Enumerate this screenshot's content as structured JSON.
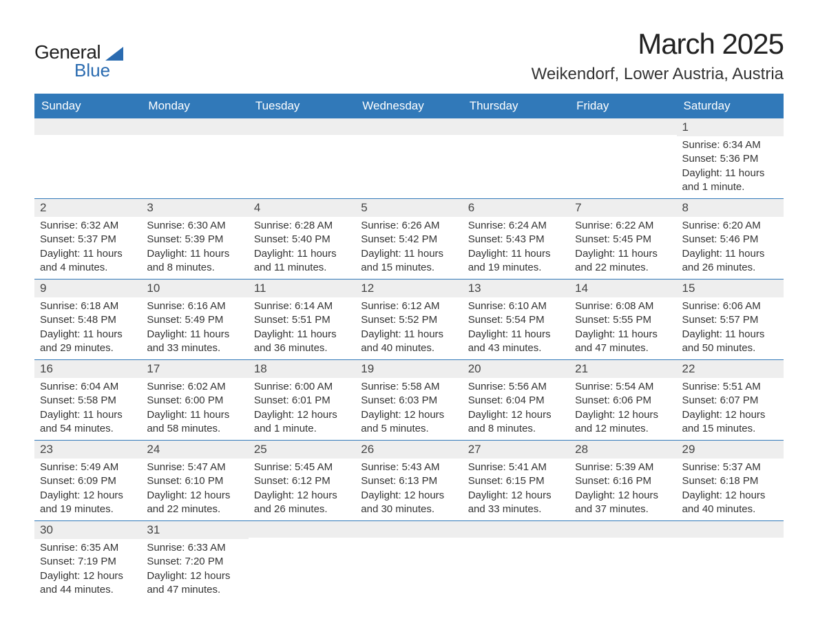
{
  "logo": {
    "line1": "General",
    "line2": "Blue"
  },
  "title": "March 2025",
  "location": "Weikendorf, Lower Austria, Austria",
  "colors": {
    "header_bg": "#3179b9",
    "row_border": "#3179b9",
    "daynum_bg": "#eeeeee",
    "text": "#333333",
    "logo_blue": "#2a6bb0"
  },
  "day_names": [
    "Sunday",
    "Monday",
    "Tuesday",
    "Wednesday",
    "Thursday",
    "Friday",
    "Saturday"
  ],
  "weeks": [
    [
      {
        "n": "",
        "sr": "",
        "ss": "",
        "dl": ""
      },
      {
        "n": "",
        "sr": "",
        "ss": "",
        "dl": ""
      },
      {
        "n": "",
        "sr": "",
        "ss": "",
        "dl": ""
      },
      {
        "n": "",
        "sr": "",
        "ss": "",
        "dl": ""
      },
      {
        "n": "",
        "sr": "",
        "ss": "",
        "dl": ""
      },
      {
        "n": "",
        "sr": "",
        "ss": "",
        "dl": ""
      },
      {
        "n": "1",
        "sr": "Sunrise: 6:34 AM",
        "ss": "Sunset: 5:36 PM",
        "dl": "Daylight: 11 hours and 1 minute."
      }
    ],
    [
      {
        "n": "2",
        "sr": "Sunrise: 6:32 AM",
        "ss": "Sunset: 5:37 PM",
        "dl": "Daylight: 11 hours and 4 minutes."
      },
      {
        "n": "3",
        "sr": "Sunrise: 6:30 AM",
        "ss": "Sunset: 5:39 PM",
        "dl": "Daylight: 11 hours and 8 minutes."
      },
      {
        "n": "4",
        "sr": "Sunrise: 6:28 AM",
        "ss": "Sunset: 5:40 PM",
        "dl": "Daylight: 11 hours and 11 minutes."
      },
      {
        "n": "5",
        "sr": "Sunrise: 6:26 AM",
        "ss": "Sunset: 5:42 PM",
        "dl": "Daylight: 11 hours and 15 minutes."
      },
      {
        "n": "6",
        "sr": "Sunrise: 6:24 AM",
        "ss": "Sunset: 5:43 PM",
        "dl": "Daylight: 11 hours and 19 minutes."
      },
      {
        "n": "7",
        "sr": "Sunrise: 6:22 AM",
        "ss": "Sunset: 5:45 PM",
        "dl": "Daylight: 11 hours and 22 minutes."
      },
      {
        "n": "8",
        "sr": "Sunrise: 6:20 AM",
        "ss": "Sunset: 5:46 PM",
        "dl": "Daylight: 11 hours and 26 minutes."
      }
    ],
    [
      {
        "n": "9",
        "sr": "Sunrise: 6:18 AM",
        "ss": "Sunset: 5:48 PM",
        "dl": "Daylight: 11 hours and 29 minutes."
      },
      {
        "n": "10",
        "sr": "Sunrise: 6:16 AM",
        "ss": "Sunset: 5:49 PM",
        "dl": "Daylight: 11 hours and 33 minutes."
      },
      {
        "n": "11",
        "sr": "Sunrise: 6:14 AM",
        "ss": "Sunset: 5:51 PM",
        "dl": "Daylight: 11 hours and 36 minutes."
      },
      {
        "n": "12",
        "sr": "Sunrise: 6:12 AM",
        "ss": "Sunset: 5:52 PM",
        "dl": "Daylight: 11 hours and 40 minutes."
      },
      {
        "n": "13",
        "sr": "Sunrise: 6:10 AM",
        "ss": "Sunset: 5:54 PM",
        "dl": "Daylight: 11 hours and 43 minutes."
      },
      {
        "n": "14",
        "sr": "Sunrise: 6:08 AM",
        "ss": "Sunset: 5:55 PM",
        "dl": "Daylight: 11 hours and 47 minutes."
      },
      {
        "n": "15",
        "sr": "Sunrise: 6:06 AM",
        "ss": "Sunset: 5:57 PM",
        "dl": "Daylight: 11 hours and 50 minutes."
      }
    ],
    [
      {
        "n": "16",
        "sr": "Sunrise: 6:04 AM",
        "ss": "Sunset: 5:58 PM",
        "dl": "Daylight: 11 hours and 54 minutes."
      },
      {
        "n": "17",
        "sr": "Sunrise: 6:02 AM",
        "ss": "Sunset: 6:00 PM",
        "dl": "Daylight: 11 hours and 58 minutes."
      },
      {
        "n": "18",
        "sr": "Sunrise: 6:00 AM",
        "ss": "Sunset: 6:01 PM",
        "dl": "Daylight: 12 hours and 1 minute."
      },
      {
        "n": "19",
        "sr": "Sunrise: 5:58 AM",
        "ss": "Sunset: 6:03 PM",
        "dl": "Daylight: 12 hours and 5 minutes."
      },
      {
        "n": "20",
        "sr": "Sunrise: 5:56 AM",
        "ss": "Sunset: 6:04 PM",
        "dl": "Daylight: 12 hours and 8 minutes."
      },
      {
        "n": "21",
        "sr": "Sunrise: 5:54 AM",
        "ss": "Sunset: 6:06 PM",
        "dl": "Daylight: 12 hours and 12 minutes."
      },
      {
        "n": "22",
        "sr": "Sunrise: 5:51 AM",
        "ss": "Sunset: 6:07 PM",
        "dl": "Daylight: 12 hours and 15 minutes."
      }
    ],
    [
      {
        "n": "23",
        "sr": "Sunrise: 5:49 AM",
        "ss": "Sunset: 6:09 PM",
        "dl": "Daylight: 12 hours and 19 minutes."
      },
      {
        "n": "24",
        "sr": "Sunrise: 5:47 AM",
        "ss": "Sunset: 6:10 PM",
        "dl": "Daylight: 12 hours and 22 minutes."
      },
      {
        "n": "25",
        "sr": "Sunrise: 5:45 AM",
        "ss": "Sunset: 6:12 PM",
        "dl": "Daylight: 12 hours and 26 minutes."
      },
      {
        "n": "26",
        "sr": "Sunrise: 5:43 AM",
        "ss": "Sunset: 6:13 PM",
        "dl": "Daylight: 12 hours and 30 minutes."
      },
      {
        "n": "27",
        "sr": "Sunrise: 5:41 AM",
        "ss": "Sunset: 6:15 PM",
        "dl": "Daylight: 12 hours and 33 minutes."
      },
      {
        "n": "28",
        "sr": "Sunrise: 5:39 AM",
        "ss": "Sunset: 6:16 PM",
        "dl": "Daylight: 12 hours and 37 minutes."
      },
      {
        "n": "29",
        "sr": "Sunrise: 5:37 AM",
        "ss": "Sunset: 6:18 PM",
        "dl": "Daylight: 12 hours and 40 minutes."
      }
    ],
    [
      {
        "n": "30",
        "sr": "Sunrise: 6:35 AM",
        "ss": "Sunset: 7:19 PM",
        "dl": "Daylight: 12 hours and 44 minutes."
      },
      {
        "n": "31",
        "sr": "Sunrise: 6:33 AM",
        "ss": "Sunset: 7:20 PM",
        "dl": "Daylight: 12 hours and 47 minutes."
      },
      {
        "n": "",
        "sr": "",
        "ss": "",
        "dl": ""
      },
      {
        "n": "",
        "sr": "",
        "ss": "",
        "dl": ""
      },
      {
        "n": "",
        "sr": "",
        "ss": "",
        "dl": ""
      },
      {
        "n": "",
        "sr": "",
        "ss": "",
        "dl": ""
      },
      {
        "n": "",
        "sr": "",
        "ss": "",
        "dl": ""
      }
    ]
  ]
}
